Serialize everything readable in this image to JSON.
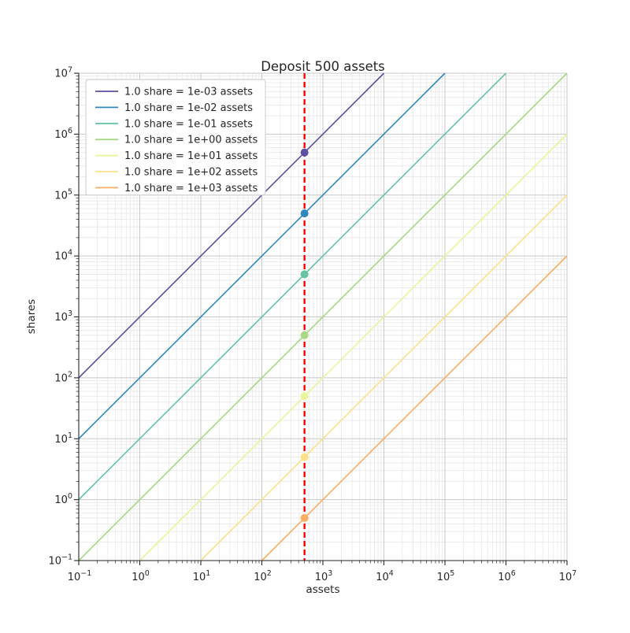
{
  "chart_data": {
    "type": "line",
    "title": "Deposit 500 assets",
    "xlabel": "assets",
    "ylabel": "shares",
    "xscale": "log",
    "yscale": "log",
    "xlim": [
      0.1,
      10000000
    ],
    "ylim": [
      0.1,
      10000000
    ],
    "x_tick_exponents": [
      -1,
      0,
      1,
      2,
      3,
      4,
      5,
      6,
      7
    ],
    "y_tick_exponents": [
      -1,
      0,
      1,
      2,
      3,
      4,
      5,
      6,
      7
    ],
    "x_tick_labels": [
      "10^-1",
      "10^0",
      "10^1",
      "10^2",
      "10^3",
      "10^4",
      "10^5",
      "10^6",
      "10^7"
    ],
    "y_tick_labels": [
      "10^-1",
      "10^0",
      "10^1",
      "10^2",
      "10^3",
      "10^4",
      "10^5",
      "10^6",
      "10^7"
    ],
    "grid": {
      "visible": true,
      "major_color": "#c8c8c8",
      "minor_color": "#e8e8e8"
    },
    "legend": {
      "visible": true,
      "location": "upper left"
    },
    "series": [
      {
        "name": "1.0 share = 1e-03 assets",
        "assets_per_share": 0.001,
        "color": "#5e4fa2",
        "deposit_point": {
          "assets": 500,
          "shares": 500000
        }
      },
      {
        "name": "1.0 share = 1e-02 assets",
        "assets_per_share": 0.01,
        "color": "#3288bd",
        "deposit_point": {
          "assets": 500,
          "shares": 50000
        }
      },
      {
        "name": "1.0 share = 1e-01 assets",
        "assets_per_share": 0.1,
        "color": "#66c2a5",
        "deposit_point": {
          "assets": 500,
          "shares": 5000
        }
      },
      {
        "name": "1.0 share = 1e+00 assets",
        "assets_per_share": 1,
        "color": "#a9d884",
        "deposit_point": {
          "assets": 500,
          "shares": 500
        }
      },
      {
        "name": "1.0 share = 1e+01 assets",
        "assets_per_share": 10,
        "color": "#e9f59a",
        "deposit_point": {
          "assets": 500,
          "shares": 50
        }
      },
      {
        "name": "1.0 share = 1e+02 assets",
        "assets_per_share": 100,
        "color": "#fee08b",
        "deposit_point": {
          "assets": 500,
          "shares": 5
        }
      },
      {
        "name": "1.0 share = 1e+03 assets",
        "assets_per_share": 1000,
        "color": "#fdae61",
        "deposit_point": {
          "assets": 500,
          "shares": 0.5
        }
      }
    ],
    "vline": {
      "x": 500,
      "color": "#ff0000",
      "linestyle": "dashed"
    }
  }
}
